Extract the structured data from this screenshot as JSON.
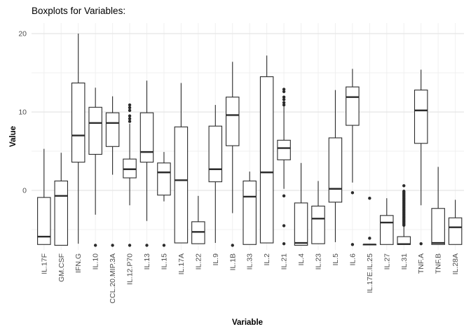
{
  "page": {
    "title": "Boxplots for Variables:"
  },
  "chart_data": {
    "type": "boxplot",
    "title": "Boxplots for Variables:",
    "xlabel": "Variable",
    "ylabel": "Value",
    "y_ticks": [
      0,
      10,
      20
    ],
    "y_minor_gridlines": [
      -5,
      5,
      15
    ],
    "ylim": [
      -7.6,
      21.3
    ],
    "grid": true,
    "legend": "none",
    "box_color": "#2b2b2b",
    "box_fill": "#ffffff",
    "major_grid_color": "#e5e5e5",
    "minor_grid_color": "#f0f0f0",
    "tick_label_color": "#4d4d4d",
    "categories": [
      "IL.17F",
      "GM.CSF",
      "IFN.G",
      "IL.10",
      "CCL.20.MIP.3A",
      "IL.12.P70",
      "IL.13",
      "IL.15",
      "IL.17A",
      "IL.22",
      "IL.9",
      "IL.1B",
      "IL.33",
      "IL.2",
      "IL.21",
      "IL.4",
      "IL.23",
      "IL.5",
      "IL.6",
      "IL.17E.IL.25",
      "IL.27",
      "IL.31",
      "TNF.A",
      "TNF.B",
      "IL.28A"
    ],
    "series": [
      {
        "name": "IL.17F",
        "whisker_low": -6.9,
        "q1": -6.9,
        "median": -5.9,
        "q3": -0.9,
        "whisker_high": 5.3,
        "outliers": []
      },
      {
        "name": "GM.CSF",
        "whisker_low": -7.0,
        "q1": -7.0,
        "median": -0.7,
        "q3": 1.2,
        "whisker_high": 4.8,
        "outliers": []
      },
      {
        "name": "IFN.G",
        "whisker_low": -6.8,
        "q1": 3.6,
        "median": 7.0,
        "q3": 13.7,
        "whisker_high": 20.0,
        "outliers": []
      },
      {
        "name": "IL.10",
        "whisker_low": -3.1,
        "q1": 4.6,
        "median": 8.6,
        "q3": 10.6,
        "whisker_high": 13.1,
        "outliers": [
          -7.0
        ]
      },
      {
        "name": "CCL.20.MIP.3A",
        "whisker_low": 2.0,
        "q1": 5.6,
        "median": 8.6,
        "q3": 9.9,
        "whisker_high": 12.0,
        "outliers": [
          -7.0
        ]
      },
      {
        "name": "IL.12.P70",
        "whisker_low": -1.9,
        "q1": 1.6,
        "median": 2.7,
        "q3": 4.0,
        "whisker_high": 8.5,
        "outliers": [
          10.9,
          10.55,
          10.2,
          9.5,
          9.15,
          8.8,
          -7.0
        ]
      },
      {
        "name": "IL.13",
        "whisker_low": -3.9,
        "q1": 3.6,
        "median": 4.9,
        "q3": 9.9,
        "whisker_high": 14.0,
        "outliers": [
          -7.0
        ]
      },
      {
        "name": "IL.15",
        "whisker_low": -1.4,
        "q1": -0.6,
        "median": 2.3,
        "q3": 3.5,
        "whisker_high": 4.9,
        "outliers": [
          -7.0
        ]
      },
      {
        "name": "IL.17A",
        "whisker_low": -6.7,
        "q1": -6.7,
        "median": 1.3,
        "q3": 8.1,
        "whisker_high": 13.7,
        "outliers": []
      },
      {
        "name": "IL.22",
        "whisker_low": -6.8,
        "q1": -6.8,
        "median": -5.3,
        "q3": -4.0,
        "whisker_high": -0.7,
        "outliers": []
      },
      {
        "name": "IL.9",
        "whisker_low": -6.7,
        "q1": 1.1,
        "median": 2.7,
        "q3": 8.2,
        "whisker_high": 10.9,
        "outliers": []
      },
      {
        "name": "IL.1B",
        "whisker_low": -2.9,
        "q1": 5.7,
        "median": 9.6,
        "q3": 11.9,
        "whisker_high": 16.4,
        "outliers": [
          -7.0
        ]
      },
      {
        "name": "IL.33",
        "whisker_low": -6.9,
        "q1": -6.9,
        "median": -0.8,
        "q3": 1.2,
        "whisker_high": 2.4,
        "outliers": []
      },
      {
        "name": "IL.2",
        "whisker_low": -6.7,
        "q1": -6.7,
        "median": 2.3,
        "q3": 14.5,
        "whisker_high": 17.2,
        "outliers": []
      },
      {
        "name": "IL.21",
        "whisker_low": 0.2,
        "q1": 3.9,
        "median": 5.4,
        "q3": 6.4,
        "whisker_high": 10.7,
        "outliers": [
          12.9,
          12.6,
          11.9,
          11.6,
          11.2,
          10.9,
          -0.7,
          -4.5,
          -6.8
        ]
      },
      {
        "name": "IL.4",
        "whisker_low": -7.0,
        "q1": -7.0,
        "median": -6.7,
        "q3": -1.6,
        "whisker_high": 3.5,
        "outliers": []
      },
      {
        "name": "IL.23",
        "whisker_low": -6.8,
        "q1": -6.8,
        "median": -3.6,
        "q3": -2.0,
        "whisker_high": 1.2,
        "outliers": []
      },
      {
        "name": "IL.5",
        "whisker_low": -6.6,
        "q1": -1.5,
        "median": 0.2,
        "q3": 6.7,
        "whisker_high": 12.8,
        "outliers": []
      },
      {
        "name": "IL.6",
        "whisker_low": 1.0,
        "q1": 8.3,
        "median": 11.9,
        "q3": 13.2,
        "whisker_high": 15.5,
        "outliers": [
          -0.3,
          -6.9
        ]
      },
      {
        "name": "IL.17E.IL.25",
        "whisker_low": -6.9,
        "q1": -6.9,
        "median": -6.9,
        "q3": -6.9,
        "whisker_high": -6.9,
        "outliers": [
          -1.0,
          -6.1
        ]
      },
      {
        "name": "IL.27",
        "whisker_low": -6.9,
        "q1": -6.9,
        "median": -4.1,
        "q3": -3.2,
        "whisker_high": -1.0,
        "outliers": []
      },
      {
        "name": "IL.31",
        "whisker_low": -6.9,
        "q1": -6.9,
        "median": -6.85,
        "q3": -5.9,
        "whisker_high": -4.5,
        "outliers": [
          0.6,
          -0.1,
          -0.25,
          -0.4,
          -0.55,
          -0.7,
          -0.85,
          -1.0,
          -1.15,
          -1.3,
          -1.45,
          -1.6,
          -1.75,
          -1.9,
          -2.05,
          -2.2,
          -2.35,
          -2.5,
          -2.65,
          -2.8,
          -2.95,
          -3.1,
          -3.25,
          -3.4,
          -3.55,
          -3.7,
          -3.85,
          -4.0,
          -4.15,
          -4.3,
          -4.45
        ]
      },
      {
        "name": "TNF.A",
        "whisker_low": -1.9,
        "q1": 6.0,
        "median": 10.2,
        "q3": 12.8,
        "whisker_high": 15.4,
        "outliers": [
          -6.8
        ]
      },
      {
        "name": "TNF.B",
        "whisker_low": -6.9,
        "q1": -6.9,
        "median": -6.7,
        "q3": -2.3,
        "whisker_high": 3.0,
        "outliers": []
      },
      {
        "name": "IL.28A",
        "whisker_low": -6.9,
        "q1": -6.9,
        "median": -4.7,
        "q3": -3.5,
        "whisker_high": -1.2,
        "outliers": []
      }
    ]
  }
}
